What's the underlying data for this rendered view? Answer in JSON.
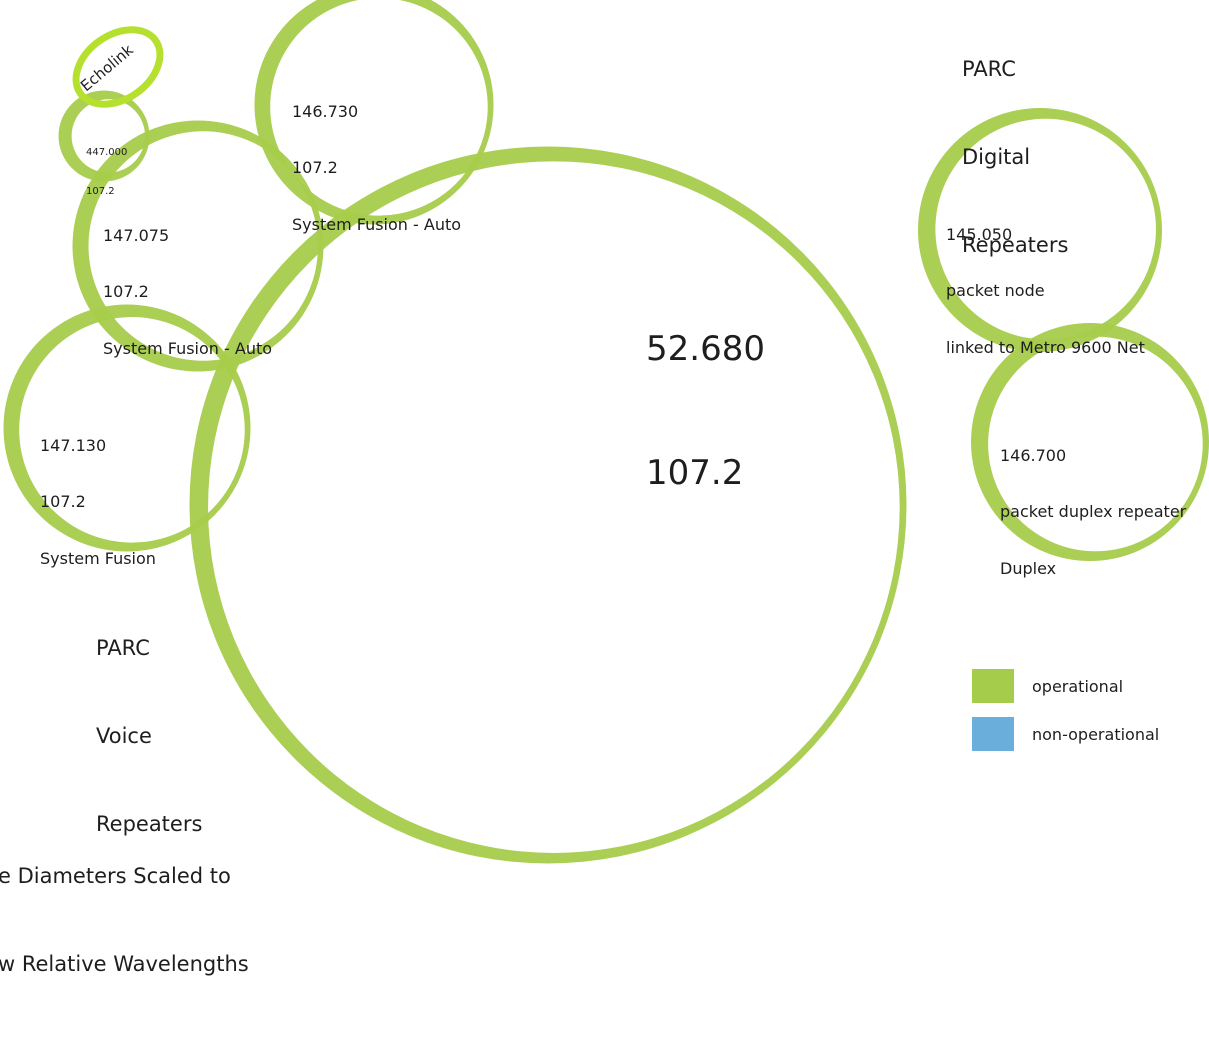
{
  "colors": {
    "operational": "#a6cc4b",
    "non_operational": "#6aaedc",
    "echolink_highlight": "#b6e02e",
    "text": "#1e1e1e"
  },
  "groups": {
    "voice": {
      "title_lines": [
        "PARC",
        "Voice",
        "Repeaters"
      ]
    },
    "digital": {
      "title_lines": [
        "PARC",
        "Digital",
        "Repeaters"
      ]
    }
  },
  "repeaters": [
    {
      "id": "r52680",
      "lines": [
        "52.680",
        "107.2"
      ],
      "status": "operational",
      "group": "voice"
    },
    {
      "id": "r146730",
      "lines": [
        "146.730",
        "107.2",
        "System Fusion - Auto"
      ],
      "status": "operational",
      "group": "voice"
    },
    {
      "id": "r147075",
      "lines": [
        "147.075",
        "107.2",
        "System Fusion - Auto"
      ],
      "status": "operational",
      "group": "voice"
    },
    {
      "id": "r147130",
      "lines": [
        "147.130",
        "107.2",
        "System Fusion"
      ],
      "status": "operational",
      "group": "voice"
    },
    {
      "id": "r447000",
      "lines": [
        "447.000",
        "107.2"
      ],
      "status": "operational",
      "group": "voice"
    },
    {
      "id": "r145050",
      "lines": [
        "145.050",
        "packet node",
        "linked to Metro 9600 Net"
      ],
      "status": "operational",
      "group": "digital"
    },
    {
      "id": "r146700",
      "lines": [
        "146.700",
        "packet duplex repeater",
        "Duplex"
      ],
      "status": "operational",
      "group": "digital"
    }
  ],
  "echolink": {
    "label": "Echolink"
  },
  "legend": [
    {
      "label": "operational",
      "color": "#a6cc4b"
    },
    {
      "label": "non-operational",
      "color": "#6aaedc"
    }
  ],
  "caption": {
    "lines": [
      "e Diameters Scaled to",
      "w Relative Wavelengths"
    ]
  }
}
